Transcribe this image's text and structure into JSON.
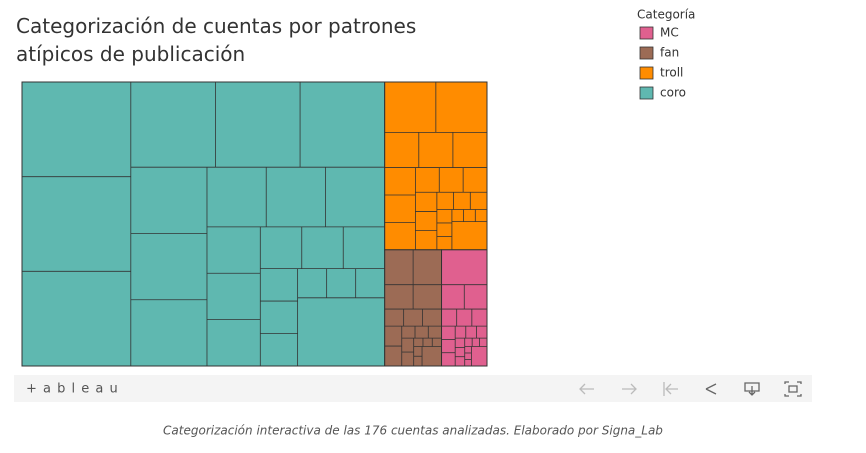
{
  "chart_data": {
    "type": "treemap",
    "title": "Categorización de cuentas por patrones atípicos de publicación",
    "legend_title": "Categoría",
    "categories": [
      "coro",
      "troll",
      "fan",
      "MC"
    ],
    "values": [
      78,
      13,
      5,
      4
    ],
    "colors": [
      "#5fb8b0",
      "#ff8c00",
      "#9c6b55",
      "#e0608f"
    ]
  },
  "toolbar": {
    "logo": "+ a b l e a u"
  },
  "caption": "Categorización interactiva de las 176 cuentas analizadas. Elaborado por Signa_Lab"
}
